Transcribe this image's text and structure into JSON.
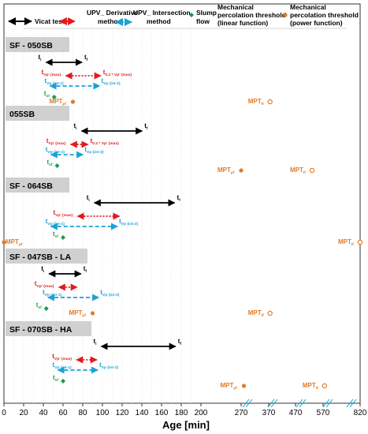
{
  "chart_data": {
    "type": "timeline",
    "xlabel": "Age [min]",
    "xticks": [
      "0",
      "20",
      "40",
      "60",
      "80",
      "100",
      "120",
      "140",
      "160",
      "180",
      "200",
      "270",
      "370",
      "470",
      "570",
      "820"
    ],
    "colors": {
      "vicat": "#000000",
      "derivative": "#e31a1c",
      "intersection": "#1ba1d6",
      "slump": "#1a9b50",
      "mpt": "#e07b2a",
      "mix_label_bg": "#d0d0d0"
    },
    "legend": {
      "vicat": "Vicat test",
      "derivative": "UPV_ Derivative method",
      "intersection": "UPV_ Intersection method",
      "slump": "Slump flow",
      "mpt_linear": "Mechanical percolation threshold (linear function)",
      "mpt_power": "Mechanical percolation threshold (power function)"
    },
    "labels": {
      "ti": "t",
      "ti_sub": "i",
      "tf": "t",
      "tf_sub": "f",
      "vp_max": "t",
      "vp_max_sub": "Vp' (max)",
      "vp_02": "t",
      "vp_02_sub": "0.2 * Vp' (max)",
      "int1": "t",
      "int1_sub": "Vp (int-1)",
      "int2": "t",
      "int2_sub": "Vp (int-2)",
      "sf": "t",
      "sf_sub": "sf",
      "mpt": "MPT",
      "mpt_pf_sub": "pf",
      "mpt_lf_sub": "lf"
    },
    "mixes": [
      {
        "name": "SF - 050SB",
        "vicat": [
          42,
          80
        ],
        "derivative": [
          62,
          99
        ],
        "derivative_end_label": "vp_02",
        "intersection": [
          46,
          98
        ],
        "slump": 51,
        "mpt_power": 70,
        "mpt_linear": 375
      },
      {
        "name": "055SB",
        "vicat": [
          78,
          141
        ],
        "derivative": [
          67,
          86
        ],
        "derivative_end_label": "vp_02",
        "intersection": [
          47,
          81
        ],
        "slump": 54,
        "mpt_power": 270,
        "mpt_linear": 530
      },
      {
        "name": "SF - 064SB",
        "vicat": [
          91,
          174
        ],
        "derivative": [
          74,
          118
        ],
        "derivative_end_label": "none",
        "intersection": [
          47,
          116
        ],
        "slump": 60,
        "mpt_power": 0,
        "mpt_linear": 820
      },
      {
        "name": "SF - 047SB - LA",
        "vicat": [
          45,
          79
        ],
        "derivative": [
          55,
          75
        ],
        "derivative_end_label": "none",
        "intersection": [
          44,
          97
        ],
        "slump": 43,
        "mpt_power": 90,
        "mpt_linear": 375
      },
      {
        "name": "SF - 070SB - HA",
        "vicat": [
          98,
          175
        ],
        "derivative": [
          73,
          95
        ],
        "derivative_end_label": "none",
        "intersection": [
          54,
          96
        ],
        "slump": 60,
        "mpt_power": 280,
        "mpt_linear": 580
      }
    ]
  }
}
